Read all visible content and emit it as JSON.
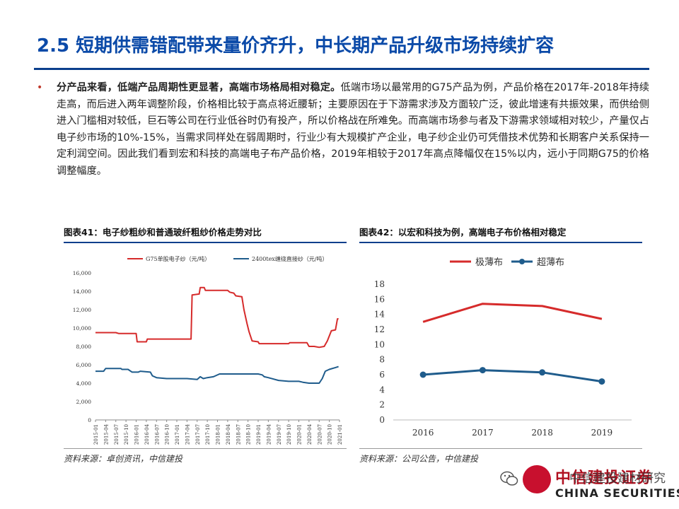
{
  "header": {
    "title": "2.5 短期供需错配带来量价齐升，中长期产品升级市场持续扩容"
  },
  "body": {
    "bullet": "•",
    "bold_lead": "分产品来看，低端产品周期性更显著，高端市场格局相对稳定。",
    "text": "低端市场以最常用的G75产品为例，产品价格在2017年-2018年持续走高，而后进入两年调整阶段，价格相比较于高点将近腰斩；主要原因在于下游需求涉及方面较广泛，彼此增速有共振效果，而供给侧进入门槛相对较低，巨石等公司在行业低谷时仍有投产，所以价格战在所难免。而高端市场参与者及下游需求领域相对较少，产量仅占电子纱市场的10%-15%，当需求同样处在弱周期时，行业少有大规模扩产企业，电子纱企业仍可凭借技术优势和长期客户关系保持一定利润空间。因此我们看到宏和科技的高端电子布产品价格，2019年相较于2017年高点降幅仅在15%以内，远小于同期G75的价格调整幅度。"
  },
  "chart41": {
    "label": "图表41：电子纱粗纱和普通玻纤粗纱价格走势对比",
    "source": "资料来源：卓创资讯，中信建投"
  },
  "chart42": {
    "label": "图表42：以宏和科技为例，高端电子布价格相对稳定",
    "source": "资料来源：公司公告，中信建投"
  },
  "footer": {
    "logo_cn": "中信建投证券",
    "logo_en": "CHINA SECURITIES",
    "watermark": "中信建投建材研究"
  },
  "colors": {
    "title_blue": "#0b4aa8",
    "red_series": "#d62b2b",
    "blue_series": "#1f5c8c"
  },
  "chart_data": [
    {
      "type": "line",
      "title": "",
      "xlabel": "",
      "ylabel": "",
      "ylim": [
        0,
        16000
      ],
      "yticks": [
        "0",
        "2,000",
        "4,000",
        "6,000",
        "8,000",
        "10,000",
        "12,000",
        "14,000",
        "16,000"
      ],
      "ytick_values": [
        0,
        2000,
        4000,
        6000,
        8000,
        10000,
        12000,
        14000,
        16000
      ],
      "categories": [
        "2015-01",
        "2015-04",
        "2015-07",
        "2015-10",
        "2016-01",
        "2016-04",
        "2016-07",
        "2016-10",
        "2017-01",
        "2017-04",
        "2017-07",
        "2017-10",
        "2018-01",
        "2018-04",
        "2018-07",
        "2018-10",
        "2019-01",
        "2019-04",
        "2019-07",
        "2019-10",
        "2020-01",
        "2020-04",
        "2020-07",
        "2020-10",
        "2021-01"
      ],
      "legend_position": "top",
      "grid": false,
      "series": [
        {
          "name": "G75单股电子纱（元/吨）",
          "color": "#d62b2b",
          "points": [
            [
              0,
              9500
            ],
            [
              2,
              9500
            ],
            [
              2.3,
              9400
            ],
            [
              4,
              9400
            ],
            [
              4.1,
              8500
            ],
            [
              5,
              8500
            ],
            [
              5.1,
              8800
            ],
            [
              9.4,
              8800
            ],
            [
              9.5,
              13600
            ],
            [
              10.2,
              13700
            ],
            [
              10.3,
              14400
            ],
            [
              10.7,
              14400
            ],
            [
              10.8,
              14100
            ],
            [
              12,
              14100
            ],
            [
              13,
              14100
            ],
            [
              13.2,
              13900
            ],
            [
              13.6,
              13800
            ],
            [
              13.8,
              13500
            ],
            [
              14.4,
              13400
            ],
            [
              14.6,
              12000
            ],
            [
              14.9,
              10500
            ],
            [
              15.1,
              9600
            ],
            [
              15.4,
              8600
            ],
            [
              16,
              8500
            ],
            [
              16.1,
              8300
            ],
            [
              19,
              8300
            ],
            [
              19.1,
              8400
            ],
            [
              20.8,
              8400
            ],
            [
              21,
              8000
            ],
            [
              21.5,
              8000
            ],
            [
              22,
              7900
            ],
            [
              22.5,
              8000
            ],
            [
              22.8,
              8600
            ],
            [
              23.2,
              9700
            ],
            [
              23.6,
              9800
            ],
            [
              23.8,
              11000
            ],
            [
              23.9,
              11000
            ]
          ]
        },
        {
          "name": "2400tex缠绕直接纱（元/吨）",
          "color": "#1f5c8c",
          "points": [
            [
              0,
              5300
            ],
            [
              0.8,
              5300
            ],
            [
              1,
              5600
            ],
            [
              2.5,
              5600
            ],
            [
              2.6,
              5500
            ],
            [
              3.2,
              5500
            ],
            [
              3.6,
              5200
            ],
            [
              4.2,
              5200
            ],
            [
              4.4,
              5300
            ],
            [
              5.4,
              5200
            ],
            [
              5.6,
              4800
            ],
            [
              6,
              4600
            ],
            [
              7,
              4500
            ],
            [
              8,
              4500
            ],
            [
              9,
              4500
            ],
            [
              10,
              4400
            ],
            [
              10.3,
              4700
            ],
            [
              10.6,
              4500
            ],
            [
              11,
              4600
            ],
            [
              11.6,
              4700
            ],
            [
              12.2,
              5000
            ],
            [
              16,
              5000
            ],
            [
              16.4,
              4900
            ],
            [
              16.6,
              4700
            ],
            [
              17,
              4600
            ],
            [
              18,
              4300
            ],
            [
              19,
              4200
            ],
            [
              20,
              4200
            ],
            [
              20.4,
              4100
            ],
            [
              21,
              4000
            ],
            [
              21.5,
              4000
            ],
            [
              22,
              4000
            ],
            [
              22.3,
              4500
            ],
            [
              22.6,
              5300
            ],
            [
              23,
              5500
            ],
            [
              23.6,
              5700
            ],
            [
              23.9,
              5800
            ]
          ]
        }
      ]
    },
    {
      "type": "line",
      "title": "",
      "xlabel": "",
      "ylabel": "",
      "ylim": [
        0,
        18
      ],
      "yticks": [
        "0",
        "2",
        "4",
        "6",
        "8",
        "10",
        "12",
        "14",
        "16",
        "18"
      ],
      "ytick_values": [
        0,
        2,
        4,
        6,
        8,
        10,
        12,
        14,
        16,
        18
      ],
      "categories": [
        "2016",
        "2017",
        "2018",
        "2019"
      ],
      "legend_position": "top",
      "grid": false,
      "series": [
        {
          "name": "极薄布",
          "color": "#d62b2b",
          "marker": false,
          "values": [
            13.0,
            15.4,
            15.1,
            13.4
          ]
        },
        {
          "name": "超薄布",
          "color": "#1f5c8c",
          "marker": true,
          "values": [
            6.0,
            6.6,
            6.3,
            5.1
          ]
        }
      ]
    }
  ]
}
